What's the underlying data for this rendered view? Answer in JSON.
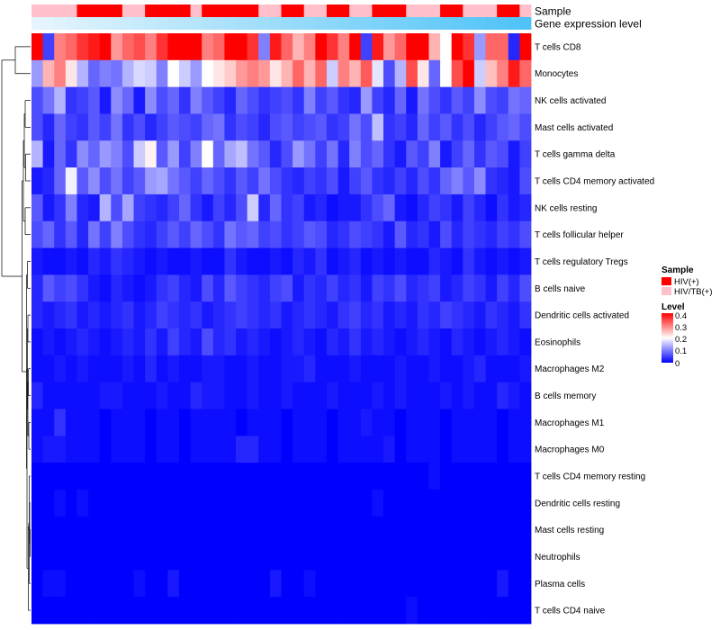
{
  "chart_data": {
    "type": "heatmap",
    "row_labels": [
      "T cells CD8",
      "Monocytes",
      "NK cells activated",
      "Mast cells activated",
      "T cells gamma delta",
      "T cells CD4 memory activated",
      "NK cells resting",
      "T cells follicular helper",
      "T cells regulatory  Tregs",
      "B cells naive",
      "Dendritic cells activated",
      "Eosinophils",
      "Macrophages M2",
      "B cells memory",
      "Macrophages M1",
      "Macrophages M0",
      "T cells CD4 memory resting",
      "Dendritic cells resting",
      "Mast cells resting",
      "Neutrophils",
      "Plasma cells",
      "T cells CD4 naive"
    ],
    "n_columns": 44,
    "sample_groups": [
      "HIV/TB(+)",
      "HIV/TB(+)",
      "HIV/TB(+)",
      "HIV/TB(+)",
      "HIV(+)",
      "HIV(+)",
      "HIV(+)",
      "HIV(+)",
      "HIV/TB(+)",
      "HIV/TB(+)",
      "HIV(+)",
      "HIV(+)",
      "HIV(+)",
      "HIV(+)",
      "HIV/TB(+)",
      "HIV(+)",
      "HIV(+)",
      "HIV(+)",
      "HIV(+)",
      "HIV(+)",
      "HIV/TB(+)",
      "HIV/TB(+)",
      "HIV(+)",
      "HIV(+)",
      "HIV/TB(+)",
      "HIV/TB(+)",
      "HIV(+)",
      "HIV(+)",
      "HIV/TB(+)",
      "HIV/TB(+)",
      "HIV(+)",
      "HIV(+)",
      "HIV(+)",
      "HIV/TB(+)",
      "HIV/TB(+)",
      "HIV/TB(+)",
      "HIV(+)",
      "HIV(+)",
      "HIV/TB(+)",
      "HIV/TB(+)",
      "HIV/TB(+)",
      "HIV(+)",
      "HIV(+)",
      "HIV/TB(+)"
    ],
    "values": [
      [
        0.4,
        0.05,
        0.3,
        0.32,
        0.36,
        0.38,
        0.4,
        0.28,
        0.32,
        0.34,
        0.3,
        0.36,
        0.4,
        0.4,
        0.4,
        0.3,
        0.32,
        0.4,
        0.4,
        0.36,
        0.1,
        0.38,
        0.32,
        0.26,
        0.3,
        0.4,
        0.36,
        0.3,
        0.4,
        0.05,
        0.38,
        0.28,
        0.32,
        0.4,
        0.4,
        0.26,
        0.2,
        0.4,
        0.36,
        0.12,
        0.32,
        0.32,
        0.03,
        0.4
      ],
      [
        0.12,
        0.26,
        0.3,
        0.22,
        0.14,
        0.08,
        0.1,
        0.09,
        0.14,
        0.17,
        0.16,
        0.1,
        0.2,
        0.16,
        0.12,
        0.2,
        0.22,
        0.24,
        0.28,
        0.3,
        0.28,
        0.22,
        0.26,
        0.32,
        0.26,
        0.32,
        0.16,
        0.3,
        0.26,
        0.33,
        0.18,
        0.06,
        0.14,
        0.34,
        0.22,
        0.08,
        0.2,
        0.34,
        0.4,
        0.16,
        0.25,
        0.3,
        0.38,
        0.32
      ],
      [
        0.06,
        0.09,
        0.14,
        0.04,
        0.05,
        0.07,
        0.02,
        0.11,
        0.08,
        0.02,
        0.11,
        0.06,
        0.08,
        0.04,
        0.1,
        0.07,
        0.05,
        0.03,
        0.08,
        0.06,
        0.04,
        0.05,
        0.06,
        0.04,
        0.1,
        0.05,
        0.07,
        0.04,
        0.03,
        0.12,
        0.05,
        0.03,
        0.08,
        0.02,
        0.09,
        0.06,
        0.04,
        0.07,
        0.05,
        0.11,
        0.06,
        0.05,
        0.09,
        0.08
      ],
      [
        0.06,
        0.03,
        0.08,
        0.05,
        0.04,
        0.07,
        0.05,
        0.09,
        0.04,
        0.06,
        0.03,
        0.05,
        0.07,
        0.06,
        0.05,
        0.08,
        0.09,
        0.04,
        0.06,
        0.05,
        0.03,
        0.06,
        0.07,
        0.05,
        0.06,
        0.07,
        0.04,
        0.05,
        0.09,
        0.06,
        0.15,
        0.04,
        0.05,
        0.03,
        0.08,
        0.05,
        0.07,
        0.04,
        0.06,
        0.03,
        0.05,
        0.07,
        0.08,
        0.06
      ],
      [
        0.14,
        0.02,
        0.08,
        0.04,
        0.11,
        0.08,
        0.12,
        0.1,
        0.06,
        0.16,
        0.21,
        0.07,
        0.12,
        0.05,
        0.1,
        0.2,
        0.08,
        0.13,
        0.15,
        0.09,
        0.07,
        0.03,
        0.06,
        0.12,
        0.09,
        0.05,
        0.09,
        0.03,
        0.1,
        0.06,
        0.08,
        0.04,
        0.02,
        0.07,
        0.05,
        0.1,
        0.02,
        0.05,
        0.08,
        0.04,
        0.07,
        0.06,
        0.02,
        0.05
      ],
      [
        0.02,
        0.03,
        0.08,
        0.19,
        0.07,
        0.11,
        0.06,
        0.09,
        0.05,
        0.07,
        0.12,
        0.13,
        0.09,
        0.07,
        0.05,
        0.08,
        0.06,
        0.04,
        0.07,
        0.05,
        0.09,
        0.06,
        0.04,
        0.03,
        0.05,
        0.04,
        0.06,
        0.02,
        0.05,
        0.07,
        0.04,
        0.03,
        0.05,
        0.03,
        0.06,
        0.04,
        0.08,
        0.1,
        0.07,
        0.11,
        0.04,
        0.03,
        0.02,
        0.06
      ],
      [
        0.07,
        0.02,
        0.04,
        0.1,
        0.03,
        0.02,
        0.14,
        0.06,
        0.13,
        0.05,
        0.04,
        0.03,
        0.05,
        0.08,
        0.04,
        0.02,
        0.05,
        0.03,
        0.06,
        0.16,
        0.03,
        0.08,
        0.04,
        0.05,
        0.02,
        0.03,
        0.01,
        0.02,
        0.02,
        0.04,
        0.06,
        0.08,
        0.02,
        0.01,
        0.03,
        0.05,
        0.04,
        0.02,
        0.05,
        0.03,
        0.01,
        0.04,
        0.02,
        0.03
      ],
      [
        0.06,
        0.08,
        0.04,
        0.07,
        0.03,
        0.09,
        0.05,
        0.1,
        0.06,
        0.04,
        0.03,
        0.05,
        0.07,
        0.05,
        0.08,
        0.06,
        0.04,
        0.09,
        0.07,
        0.08,
        0.05,
        0.06,
        0.04,
        0.05,
        0.07,
        0.06,
        0.03,
        0.04,
        0.06,
        0.05,
        0.04,
        0.02,
        0.07,
        0.03,
        0.04,
        0.02,
        0.06,
        0.03,
        0.05,
        0.04,
        0.03,
        0.05,
        0.04,
        0.06
      ],
      [
        0.02,
        0.01,
        0.01,
        0.02,
        0.01,
        0.03,
        0.02,
        0.04,
        0.03,
        0.02,
        0.01,
        0.02,
        0.01,
        0.01,
        0.02,
        0.01,
        0.01,
        0.04,
        0.02,
        0.01,
        0.01,
        0.02,
        0.01,
        0.03,
        0.02,
        0.04,
        0.01,
        0.02,
        0.03,
        0.01,
        0.02,
        0.01,
        0.02,
        0.01,
        0.01,
        0.03,
        0.02,
        0.01,
        0.04,
        0.02,
        0.01,
        0.02,
        0.01,
        0.02
      ],
      [
        0.03,
        0.07,
        0.05,
        0.06,
        0.04,
        0.02,
        0.01,
        0.03,
        0.02,
        0.01,
        0.02,
        0.04,
        0.05,
        0.03,
        0.02,
        0.06,
        0.03,
        0.07,
        0.05,
        0.04,
        0.03,
        0.05,
        0.06,
        0.02,
        0.04,
        0.03,
        0.05,
        0.03,
        0.04,
        0.02,
        0.05,
        0.04,
        0.06,
        0.03,
        0.04,
        0.05,
        0.02,
        0.03,
        0.05,
        0.04,
        0.02,
        0.05,
        0.03,
        0.06
      ],
      [
        0.03,
        0.02,
        0.03,
        0.04,
        0.02,
        0.03,
        0.02,
        0.03,
        0.04,
        0.02,
        0.03,
        0.05,
        0.04,
        0.03,
        0.04,
        0.02,
        0.03,
        0.04,
        0.05,
        0.04,
        0.03,
        0.04,
        0.02,
        0.03,
        0.04,
        0.03,
        0.02,
        0.04,
        0.05,
        0.03,
        0.04,
        0.02,
        0.03,
        0.02,
        0.04,
        0.03,
        0.05,
        0.04,
        0.03,
        0.02,
        0.04,
        0.03,
        0.02,
        0.04
      ],
      [
        0.01,
        0.02,
        0.01,
        0.02,
        0.03,
        0.02,
        0.01,
        0.02,
        0.03,
        0.02,
        0.04,
        0.02,
        0.05,
        0.03,
        0.02,
        0.06,
        0.03,
        0.04,
        0.02,
        0.03,
        0.02,
        0.01,
        0.02,
        0.03,
        0.02,
        0.01,
        0.03,
        0.02,
        0.04,
        0.02,
        0.03,
        0.02,
        0.01,
        0.02,
        0.03,
        0.02,
        0.01,
        0.03,
        0.02,
        0.01,
        0.02,
        0.03,
        0.02,
        0.01
      ],
      [
        0.01,
        0.01,
        0.02,
        0.01,
        0.02,
        0.01,
        0.01,
        0.01,
        0.02,
        0.01,
        0.03,
        0.01,
        0.02,
        0.01,
        0.01,
        0.02,
        0.02,
        0.01,
        0.01,
        0.02,
        0.01,
        0.01,
        0.02,
        0.02,
        0.03,
        0.01,
        0.01,
        0.01,
        0.02,
        0.01,
        0.01,
        0.01,
        0.02,
        0.01,
        0.01,
        0.02,
        0.01,
        0.01,
        0.02,
        0.03,
        0.01,
        0.01,
        0.01,
        0.02
      ],
      [
        0.03,
        0.01,
        0.01,
        0.01,
        0.01,
        0.01,
        0.02,
        0.02,
        0.01,
        0.01,
        0.01,
        0.02,
        0.01,
        0.01,
        0.03,
        0.02,
        0.02,
        0.01,
        0.01,
        0.02,
        0.01,
        0.01,
        0.02,
        0.01,
        0.01,
        0.01,
        0.02,
        0.01,
        0.01,
        0.01,
        0.02,
        0.01,
        0.02,
        0.01,
        0.01,
        0.01,
        0.02,
        0.01,
        0.02,
        0.01,
        0.01,
        0.03,
        0.02,
        0.01
      ],
      [
        0.01,
        0.01,
        0.04,
        0.01,
        0.01,
        0.01,
        0.0,
        0.01,
        0.01,
        0.01,
        0.0,
        0.01,
        0.01,
        0.0,
        0.01,
        0.01,
        0.01,
        0.01,
        0.0,
        0.01,
        0.01,
        0.01,
        0.0,
        0.01,
        0.01,
        0.01,
        0.0,
        0.01,
        0.01,
        0.02,
        0.01,
        0.01,
        0.0,
        0.01,
        0.01,
        0.01,
        0.0,
        0.01,
        0.01,
        0.01,
        0.01,
        0.0,
        0.01,
        0.01
      ],
      [
        0.01,
        0.02,
        0.02,
        0.01,
        0.01,
        0.01,
        0.0,
        0.01,
        0.01,
        0.01,
        0.0,
        0.01,
        0.01,
        0.0,
        0.01,
        0.01,
        0.01,
        0.01,
        0.03,
        0.03,
        0.01,
        0.01,
        0.0,
        0.01,
        0.01,
        0.01,
        0.0,
        0.01,
        0.01,
        0.01,
        0.01,
        0.02,
        0.0,
        0.01,
        0.01,
        0.01,
        0.0,
        0.01,
        0.01,
        0.01,
        0.01,
        0.0,
        0.01,
        0.01
      ],
      [
        0.0,
        0.0,
        0.0,
        0.0,
        0.0,
        0.0,
        0.0,
        0.0,
        0.0,
        0.0,
        0.0,
        0.0,
        0.0,
        0.0,
        0.0,
        0.0,
        0.0,
        0.0,
        0.0,
        0.0,
        0.0,
        0.0,
        0.0,
        0.0,
        0.0,
        0.0,
        0.0,
        0.0,
        0.0,
        0.0,
        0.0,
        0.0,
        0.0,
        0.0,
        0.0,
        0.01,
        0.0,
        0.0,
        0.0,
        0.0,
        0.0,
        0.0,
        0.0,
        0.0
      ],
      [
        0.0,
        0.0,
        0.01,
        0.0,
        0.01,
        0.0,
        0.0,
        0.0,
        0.0,
        0.0,
        0.0,
        0.0,
        0.0,
        0.0,
        0.0,
        0.0,
        0.0,
        0.0,
        0.0,
        0.0,
        0.0,
        0.0,
        0.0,
        0.0,
        0.0,
        0.0,
        0.0,
        0.0,
        0.0,
        0.0,
        0.01,
        0.0,
        0.0,
        0.0,
        0.0,
        0.0,
        0.0,
        0.0,
        0.0,
        0.0,
        0.0,
        0.0,
        0.0,
        0.0
      ],
      [
        0.0,
        0.0,
        0.0,
        0.0,
        0.0,
        0.0,
        0.0,
        0.0,
        0.0,
        0.0,
        0.0,
        0.0,
        0.0,
        0.0,
        0.0,
        0.0,
        0.0,
        0.0,
        0.0,
        0.0,
        0.0,
        0.0,
        0.0,
        0.0,
        0.0,
        0.0,
        0.0,
        0.0,
        0.0,
        0.0,
        0.0,
        0.0,
        0.0,
        0.0,
        0.0,
        0.0,
        0.0,
        0.0,
        0.0,
        0.0,
        0.0,
        0.0,
        0.0,
        0.0
      ],
      [
        0.0,
        0.0,
        0.0,
        0.0,
        0.0,
        0.0,
        0.0,
        0.0,
        0.0,
        0.0,
        0.0,
        0.0,
        0.0,
        0.0,
        0.0,
        0.0,
        0.0,
        0.0,
        0.0,
        0.0,
        0.0,
        0.0,
        0.0,
        0.0,
        0.0,
        0.0,
        0.0,
        0.0,
        0.0,
        0.0,
        0.0,
        0.0,
        0.0,
        0.0,
        0.0,
        0.0,
        0.0,
        0.0,
        0.0,
        0.0,
        0.0,
        0.0,
        0.0,
        0.0
      ],
      [
        0.0,
        0.01,
        0.01,
        0.0,
        0.0,
        0.0,
        0.0,
        0.0,
        0.0,
        0.01,
        0.0,
        0.0,
        0.02,
        0.0,
        0.0,
        0.0,
        0.0,
        0.0,
        0.0,
        0.0,
        0.0,
        0.02,
        0.0,
        0.0,
        0.01,
        0.0,
        0.0,
        0.0,
        0.0,
        0.0,
        0.0,
        0.0,
        0.0,
        0.0,
        0.0,
        0.0,
        0.0,
        0.0,
        0.0,
        0.0,
        0.0,
        0.02,
        0.0,
        0.0
      ],
      [
        0.0,
        0.0,
        0.0,
        0.0,
        0.0,
        0.0,
        0.0,
        0.0,
        0.0,
        0.0,
        0.0,
        0.0,
        0.0,
        0.0,
        0.0,
        0.0,
        0.0,
        0.0,
        0.0,
        0.0,
        0.0,
        0.0,
        0.0,
        0.0,
        0.0,
        0.0,
        0.0,
        0.0,
        0.0,
        0.0,
        0.0,
        0.0,
        0.0,
        0.01,
        0.0,
        0.0,
        0.0,
        0.0,
        0.0,
        0.0,
        0.0,
        0.0,
        0.0,
        0.0
      ]
    ],
    "annotations": [
      {
        "label": "Sample"
      },
      {
        "label": "Gene expression level"
      }
    ],
    "legend_sample": {
      "title": "Sample",
      "entries": [
        {
          "label": "HIV(+)",
          "color": "#ff0000"
        },
        {
          "label": "HIV/TB(+)",
          "color": "#ffc0cb"
        }
      ]
    },
    "legend_level": {
      "title": "Level",
      "ticks": [
        "0.4",
        "0.3",
        "0.2",
        "0.1",
        "0"
      ],
      "tick_values": [
        0.4,
        0.3,
        0.2,
        0.1,
        0.0
      ],
      "range": [
        0,
        0.4
      ]
    },
    "colors": {
      "low": "#0000ff",
      "mid": "#ffffff",
      "high": "#ff0000",
      "expr_low": "#e6f5fd",
      "expr_high": "#4fc3f7"
    }
  }
}
